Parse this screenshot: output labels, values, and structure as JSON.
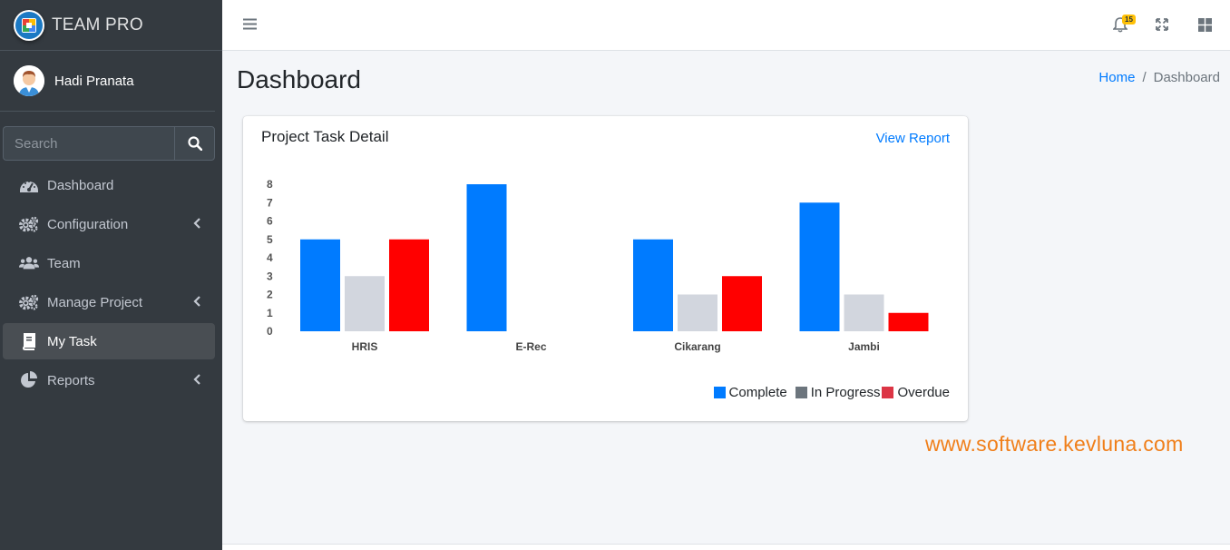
{
  "brand": {
    "name": "TEAM PRO"
  },
  "user": {
    "name": "Hadi Pranata"
  },
  "search": {
    "placeholder": "Search"
  },
  "sidebar": {
    "items": [
      {
        "label": "Dashboard",
        "icon": "tachometer-icon",
        "has_submenu": false,
        "active": false
      },
      {
        "label": "Configuration",
        "icon": "cogs-icon",
        "has_submenu": true,
        "active": false
      },
      {
        "label": "Team",
        "icon": "users-icon",
        "has_submenu": false,
        "active": false
      },
      {
        "label": "Manage Project",
        "icon": "cogs-icon",
        "has_submenu": true,
        "active": false
      },
      {
        "label": "My Task",
        "icon": "book-icon",
        "has_submenu": false,
        "active": true
      },
      {
        "label": "Reports",
        "icon": "pie-chart-icon",
        "has_submenu": true,
        "active": false
      }
    ]
  },
  "topbar": {
    "notification_count": "15"
  },
  "header": {
    "title": "Dashboard"
  },
  "breadcrumb": {
    "home": "Home",
    "current": "Dashboard"
  },
  "card": {
    "title": "Project Task Detail",
    "link": "View Report"
  },
  "colors": {
    "complete": "#007bff",
    "in_progress": "#d2d6de",
    "overdue": "#ff0000",
    "legend_in_progress": "#6c757d",
    "legend_overdue": "#dc3545"
  },
  "chart_data": {
    "type": "bar",
    "title": "Project Task Detail",
    "categories": [
      "HRIS",
      "E-Rec",
      "Cikarang",
      "Jambi"
    ],
    "series": [
      {
        "name": "Complete",
        "values": [
          5,
          8,
          5,
          7
        ]
      },
      {
        "name": "In Progress",
        "values": [
          3,
          0,
          2,
          2
        ]
      },
      {
        "name": "Overdue",
        "values": [
          5,
          0,
          3,
          1
        ]
      }
    ],
    "yticks": [
      "0",
      "1",
      "2",
      "3",
      "4",
      "5",
      "6",
      "7",
      "8"
    ],
    "ylim": [
      0,
      8
    ],
    "xlabel": "",
    "ylabel": "",
    "legend_position": "bottom-right"
  },
  "watermark": "www.software.kevluna.com"
}
